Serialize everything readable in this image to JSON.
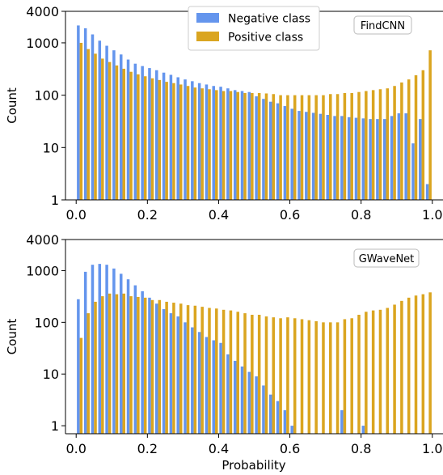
{
  "chart_data": [
    {
      "type": "bar",
      "badge": "FindCNN",
      "ylabel": "Count",
      "xlabel": "",
      "yscale": "log",
      "ylim": [
        1,
        4000
      ],
      "xlim": [
        -0.03,
        1.03
      ],
      "yticks": [
        1,
        10,
        100,
        1000,
        4000
      ],
      "ytick_labels": [
        "1",
        "10",
        "100",
        "1000",
        "4000"
      ],
      "xticks": [
        0.0,
        0.2,
        0.4,
        0.6,
        0.8,
        1.0
      ],
      "xtick_labels": [
        "0.0",
        "0.2",
        "0.4",
        "0.6",
        "0.8",
        "1.0"
      ],
      "legend_position": "top-center",
      "bin_centers": [
        0.01,
        0.03,
        0.05,
        0.07,
        0.09,
        0.11,
        0.13,
        0.15,
        0.17,
        0.19,
        0.21,
        0.23,
        0.25,
        0.27,
        0.29,
        0.31,
        0.33,
        0.35,
        0.37,
        0.39,
        0.41,
        0.43,
        0.45,
        0.47,
        0.49,
        0.51,
        0.53,
        0.55,
        0.57,
        0.59,
        0.61,
        0.63,
        0.65,
        0.67,
        0.69,
        0.71,
        0.73,
        0.75,
        0.77,
        0.79,
        0.81,
        0.83,
        0.85,
        0.87,
        0.89,
        0.91,
        0.93,
        0.95,
        0.97,
        0.99
      ],
      "series": [
        {
          "name": "Negative class",
          "color": "#6495ed",
          "values": [
            2150,
            1900,
            1450,
            1100,
            880,
            720,
            600,
            480,
            400,
            360,
            330,
            300,
            270,
            245,
            220,
            200,
            185,
            170,
            160,
            150,
            145,
            135,
            125,
            120,
            115,
            95,
            85,
            75,
            70,
            62,
            55,
            50,
            48,
            46,
            44,
            42,
            40,
            40,
            38,
            37,
            36,
            35,
            35,
            35,
            40,
            45,
            45,
            12,
            35,
            2
          ]
        },
        {
          "name": "Positive class",
          "color": "#daa520",
          "values": [
            1000,
            760,
            620,
            500,
            430,
            370,
            320,
            280,
            250,
            230,
            210,
            195,
            180,
            170,
            160,
            150,
            140,
            135,
            130,
            125,
            120,
            120,
            115,
            110,
            110,
            110,
            108,
            105,
            100,
            100,
            100,
            100,
            100,
            100,
            100,
            105,
            105,
            110,
            110,
            115,
            120,
            125,
            130,
            135,
            150,
            175,
            200,
            240,
            300,
            720
          ]
        }
      ]
    },
    {
      "type": "bar",
      "badge": "GWaveNet",
      "ylabel": "Count",
      "xlabel": "Probability",
      "yscale": "log",
      "ylim": [
        0.7,
        4000
      ],
      "xlim": [
        -0.03,
        1.03
      ],
      "yticks": [
        1,
        10,
        100,
        1000,
        4000
      ],
      "ytick_labels": [
        "1",
        "10",
        "100",
        "1000",
        "4000"
      ],
      "xticks": [
        0.0,
        0.2,
        0.4,
        0.6,
        0.8,
        1.0
      ],
      "xtick_labels": [
        "0.0",
        "0.2",
        "0.4",
        "0.6",
        "0.8",
        "1.0"
      ],
      "bin_centers": [
        0.01,
        0.03,
        0.05,
        0.07,
        0.09,
        0.11,
        0.13,
        0.15,
        0.17,
        0.19,
        0.21,
        0.23,
        0.25,
        0.27,
        0.29,
        0.31,
        0.33,
        0.35,
        0.37,
        0.39,
        0.41,
        0.43,
        0.45,
        0.47,
        0.49,
        0.51,
        0.53,
        0.55,
        0.57,
        0.59,
        0.61,
        0.63,
        0.65,
        0.67,
        0.69,
        0.71,
        0.73,
        0.75,
        0.77,
        0.79,
        0.81,
        0.83,
        0.85,
        0.87,
        0.89,
        0.91,
        0.93,
        0.95,
        0.97,
        0.99
      ],
      "series": [
        {
          "name": "Negative class",
          "color": "#6495ed",
          "values": [
            280,
            950,
            1300,
            1350,
            1300,
            1100,
            870,
            680,
            520,
            400,
            300,
            230,
            180,
            150,
            130,
            100,
            80,
            65,
            52,
            45,
            40,
            24,
            18,
            14,
            11,
            9,
            6,
            4,
            3,
            2,
            1,
            0,
            0,
            0,
            0,
            0,
            0,
            2,
            0,
            0,
            1,
            0,
            0,
            0,
            0,
            0,
            0,
            0,
            0,
            0
          ]
        },
        {
          "name": "Positive class",
          "color": "#daa520",
          "values": [
            50,
            150,
            250,
            320,
            360,
            350,
            360,
            320,
            310,
            300,
            270,
            270,
            250,
            240,
            230,
            215,
            210,
            200,
            190,
            185,
            175,
            170,
            160,
            150,
            140,
            140,
            130,
            125,
            120,
            125,
            120,
            115,
            110,
            105,
            100,
            100,
            100,
            115,
            120,
            140,
            160,
            170,
            175,
            190,
            220,
            260,
            300,
            330,
            350,
            380
          ]
        }
      ]
    }
  ]
}
